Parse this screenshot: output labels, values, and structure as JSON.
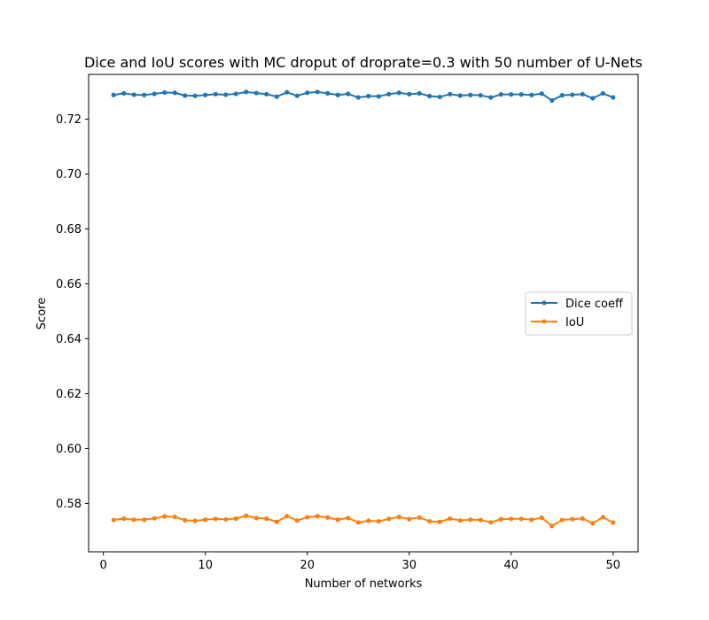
{
  "chart_data": {
    "type": "line",
    "title": "Dice and IoU scores with MC droput of droprate=0.3 with 50 number of U-Nets",
    "xlabel": "Number of networks",
    "ylabel": "Score",
    "xlim": [
      -1.45,
      52.45
    ],
    "ylim": [
      0.5624,
      0.7363
    ],
    "xticks": [
      0,
      10,
      20,
      30,
      40,
      50
    ],
    "yticks": [
      0.58,
      0.6,
      0.62,
      0.64,
      0.66,
      0.68,
      0.7,
      0.72
    ],
    "ytick_labels": [
      "0.58",
      "0.60",
      "0.62",
      "0.64",
      "0.66",
      "0.68",
      "0.70",
      "0.72"
    ],
    "grid": false,
    "legend_position": "center-right",
    "x": [
      1,
      2,
      3,
      4,
      5,
      6,
      7,
      8,
      9,
      10,
      11,
      12,
      13,
      14,
      15,
      16,
      17,
      18,
      19,
      20,
      21,
      22,
      23,
      24,
      25,
      26,
      27,
      28,
      29,
      30,
      31,
      32,
      33,
      34,
      35,
      36,
      37,
      38,
      39,
      40,
      41,
      42,
      43,
      44,
      45,
      46,
      47,
      48,
      49,
      50
    ],
    "series": [
      {
        "name": "Dice coeff",
        "color": "#1f77b4",
        "values": [
          0.7288,
          0.7294,
          0.7289,
          0.7288,
          0.7292,
          0.7297,
          0.7296,
          0.7286,
          0.7285,
          0.7288,
          0.7291,
          0.7289,
          0.7292,
          0.7299,
          0.7295,
          0.7291,
          0.7282,
          0.7298,
          0.7285,
          0.7296,
          0.7299,
          0.7294,
          0.7288,
          0.7292,
          0.7279,
          0.7284,
          0.7283,
          0.7291,
          0.7296,
          0.7291,
          0.7294,
          0.7284,
          0.7281,
          0.7291,
          0.7286,
          0.7288,
          0.7287,
          0.7279,
          0.729,
          0.729,
          0.729,
          0.7288,
          0.7293,
          0.7268,
          0.7287,
          0.7289,
          0.7291,
          0.7276,
          0.7294,
          0.7279
        ]
      },
      {
        "name": "IoU",
        "color": "#ff7f0e",
        "values": [
          0.574,
          0.5745,
          0.5741,
          0.5741,
          0.5746,
          0.5753,
          0.5751,
          0.5739,
          0.5737,
          0.5741,
          0.5744,
          0.5742,
          0.5745,
          0.5755,
          0.5747,
          0.5745,
          0.5733,
          0.5754,
          0.5738,
          0.575,
          0.5754,
          0.5749,
          0.5741,
          0.5747,
          0.5731,
          0.5737,
          0.5735,
          0.5744,
          0.5751,
          0.5743,
          0.5749,
          0.5735,
          0.5733,
          0.5745,
          0.5738,
          0.5741,
          0.574,
          0.5731,
          0.5743,
          0.5744,
          0.5744,
          0.5741,
          0.5748,
          0.5718,
          0.574,
          0.5743,
          0.5745,
          0.5728,
          0.575,
          0.573
        ]
      }
    ]
  }
}
